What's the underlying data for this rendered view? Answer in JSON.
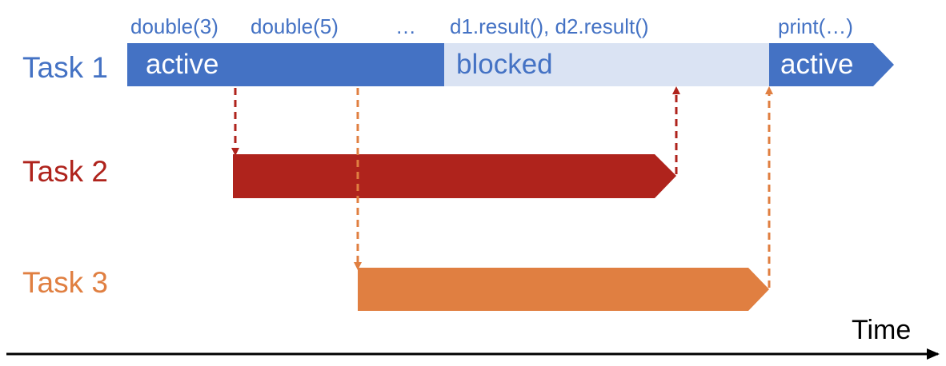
{
  "colors": {
    "task1": "#4472c4",
    "task1_blocked": "#dae3f3",
    "task2": "#af231c",
    "task3": "#e07f41",
    "axis": "#000000"
  },
  "calls": {
    "double3": "double(3)",
    "double5": "double(5)",
    "ellipsis": "…",
    "results": "d1.result(), d2.result()",
    "print": "print(…)"
  },
  "tasks": {
    "task1": {
      "label": "Task 1",
      "state_active": "active",
      "state_blocked": "blocked",
      "state_active_end": "active"
    },
    "task2": {
      "label": "Task 2"
    },
    "task3": {
      "label": "Task 3"
    }
  },
  "axis": {
    "label": "Time"
  }
}
